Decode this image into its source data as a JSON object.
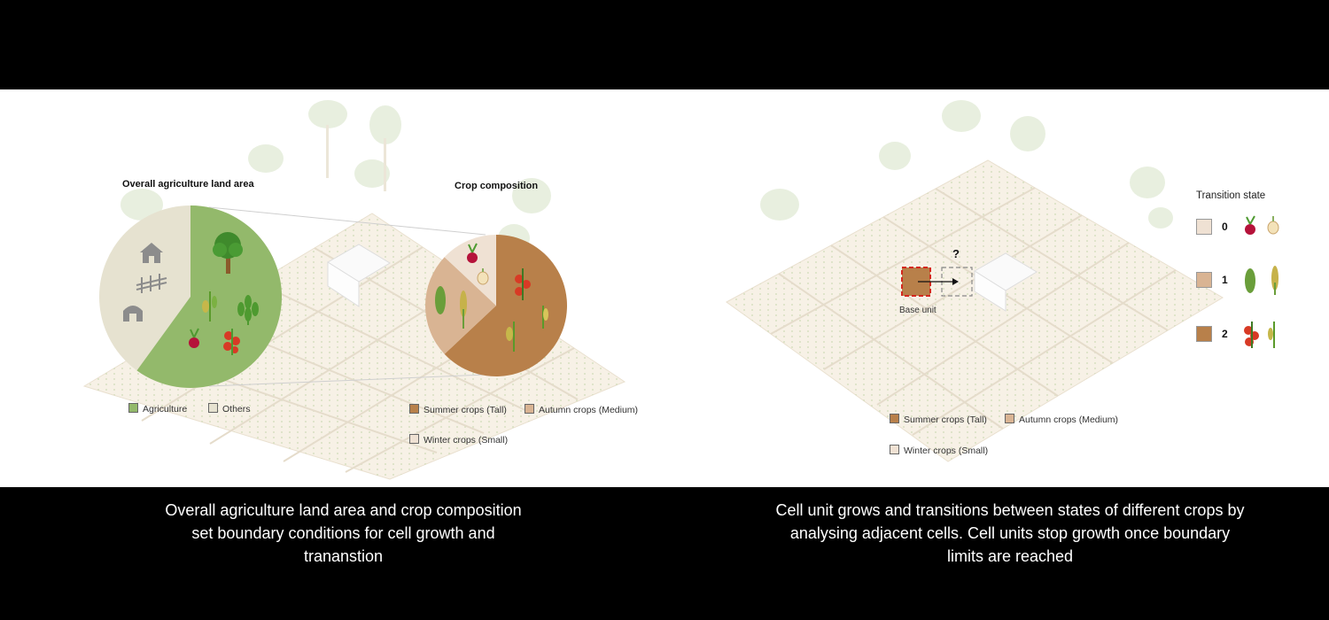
{
  "left_panel": {
    "title_land": "Overall agriculture  land area",
    "title_crop": "Crop composition",
    "legend_land": [
      {
        "label": "Agriculture",
        "color": "#93b96b"
      },
      {
        "label": "Others",
        "color": "#e6e2d0"
      }
    ],
    "legend_crops": [
      {
        "label": "Summer crops (Tall)",
        "color": "#b8804a"
      },
      {
        "label": "Autumn crops (Medium)",
        "color": "#d9b493"
      },
      {
        "label": "Winter crops (Small)",
        "color": "#efe1d3"
      }
    ],
    "land_pie": [
      {
        "name": "Agriculture",
        "value": 60
      },
      {
        "name": "Others",
        "value": 40
      }
    ],
    "crop_pie": [
      {
        "name": "Summer crops (Tall)",
        "value": 63
      },
      {
        "name": "Autumn crops (Medium)",
        "value": 24
      },
      {
        "name": "Winter crops (Small)",
        "value": 13
      }
    ]
  },
  "right_panel": {
    "transition_title": "Transition state",
    "states": [
      {
        "label": "0",
        "color": "#efe1d3"
      },
      {
        "label": "1",
        "color": "#d9b493"
      },
      {
        "label": "2",
        "color": "#b8804a"
      }
    ],
    "question": "?",
    "base_unit": "Base unit",
    "legend_crops": [
      {
        "label": "Summer crops (Tall)",
        "color": "#b8804a"
      },
      {
        "label": "Autumn crops (Medium)",
        "color": "#d9b493"
      },
      {
        "label": "Winter crops (Small)",
        "color": "#efe1d3"
      }
    ]
  },
  "captions": {
    "left": "Overall agriculture land area and crop composition set boundary conditions for cell growth and trananstion",
    "right": "Cell unit grows and transitions between states of different crops by analysing adjacent cells. Cell units stop growth once boundary limits are reached"
  },
  "icons": [
    "house-icon",
    "fence-icon",
    "barn-icon",
    "tree-icon",
    "wheat-icon",
    "corn-icon",
    "beet-icon",
    "onion-icon",
    "tomato-icon",
    "herb-icon"
  ]
}
